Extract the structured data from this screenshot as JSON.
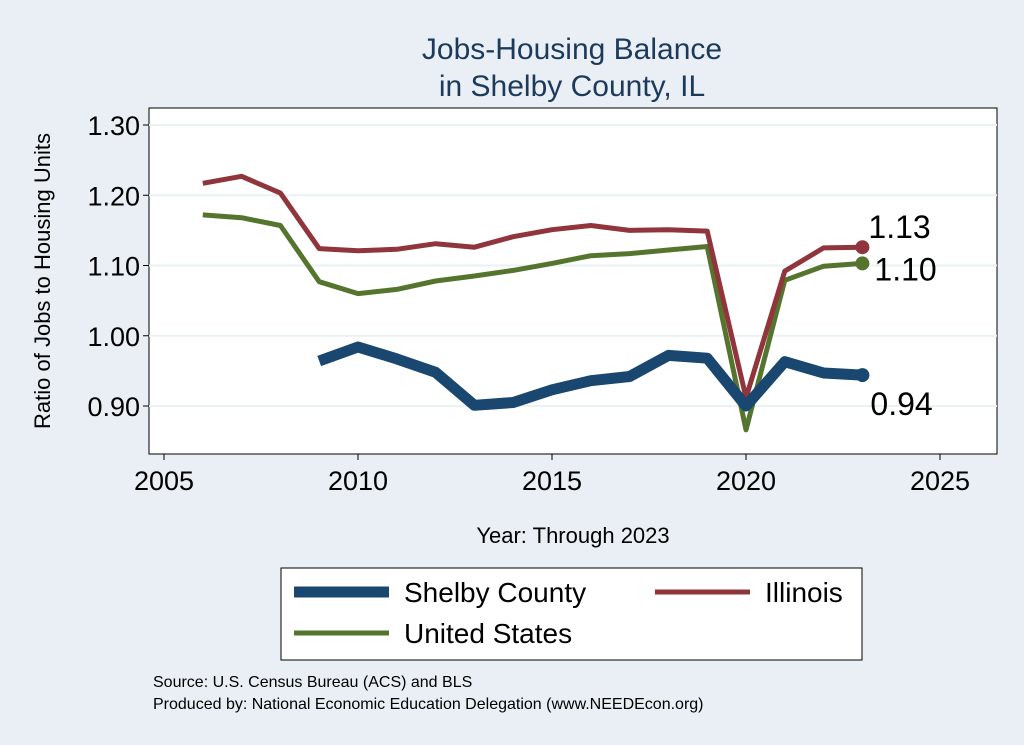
{
  "chart_data": {
    "type": "line",
    "title": [
      "Jobs-Housing Balance",
      "in Shelby County, IL"
    ],
    "xlabel": "Year: Through 2023",
    "ylabel": "Ratio of Jobs to Housing Units",
    "xlim": [
      2004.5,
      2026.5
    ],
    "ylim": [
      0.84,
      1.32
    ],
    "xticks": [
      2005,
      2010,
      2015,
      2020,
      2025
    ],
    "yticks": [
      0.9,
      1.0,
      1.1,
      1.2,
      1.3
    ],
    "ytick_labels": [
      "0.90",
      "1.00",
      "1.10",
      "1.20",
      "1.30"
    ],
    "grid": true,
    "series": [
      {
        "name": "Shelby County",
        "color": "#1a476f",
        "width": 11,
        "x": [
          2009,
          2010,
          2011,
          2012,
          2013,
          2014,
          2015,
          2016,
          2017,
          2018,
          2019,
          2020,
          2021,
          2022,
          2023
        ],
        "values": [
          0.964,
          0.984,
          0.967,
          0.948,
          0.901,
          0.905,
          0.923,
          0.936,
          0.942,
          0.972,
          0.968,
          0.9,
          0.963,
          0.947,
          0.944
        ],
        "end_label": "0.94"
      },
      {
        "name": "Illinois",
        "color": "#90353b",
        "width": 5,
        "x": [
          2006,
          2007,
          2008,
          2009,
          2010,
          2011,
          2012,
          2013,
          2014,
          2015,
          2016,
          2017,
          2018,
          2019,
          2020,
          2021,
          2022,
          2023
        ],
        "values": [
          1.217,
          1.227,
          1.203,
          1.124,
          1.121,
          1.123,
          1.131,
          1.126,
          1.141,
          1.151,
          1.157,
          1.15,
          1.151,
          1.149,
          0.912,
          1.092,
          1.125,
          1.126
        ],
        "end_label": "1.13"
      },
      {
        "name": "United States",
        "color": "#55752f",
        "width": 5,
        "x": [
          2006,
          2007,
          2008,
          2009,
          2010,
          2011,
          2012,
          2013,
          2014,
          2015,
          2016,
          2017,
          2018,
          2019,
          2020,
          2021,
          2022,
          2023
        ],
        "values": [
          1.172,
          1.168,
          1.157,
          1.077,
          1.06,
          1.066,
          1.078,
          1.085,
          1.093,
          1.103,
          1.114,
          1.117,
          1.122,
          1.127,
          0.866,
          1.079,
          1.099,
          1.103
        ],
        "end_label": "1.10"
      }
    ],
    "legend": {
      "position": "bottom",
      "order": [
        "Shelby County",
        "Illinois",
        "United States"
      ]
    },
    "source_lines": [
      "Source: U.S. Census Bureau (ACS) and BLS",
      "Produced by: National Economic Education Delegation (www.NEEDEcon.org)"
    ]
  }
}
